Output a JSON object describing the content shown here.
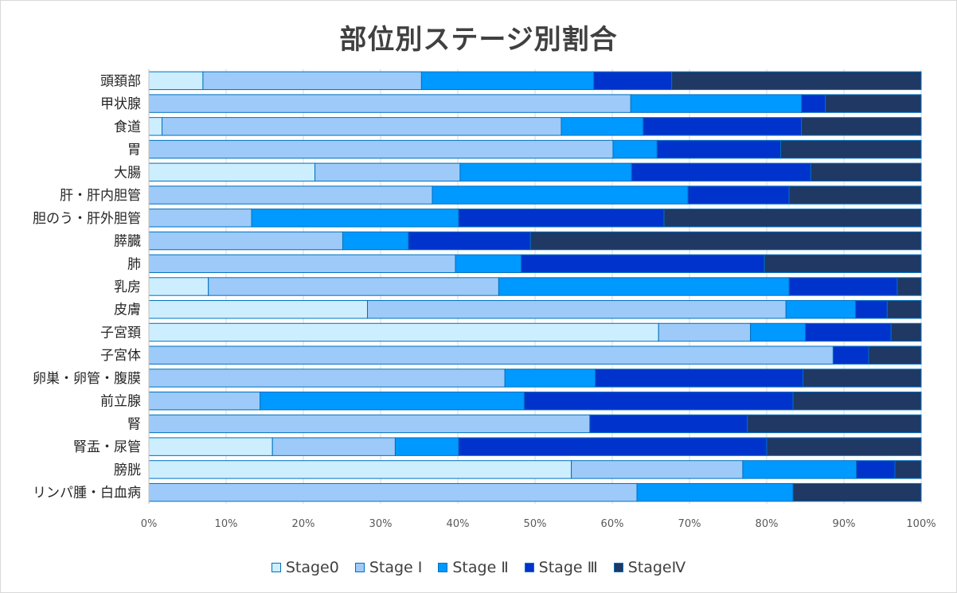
{
  "chart_data": {
    "type": "bar",
    "orientation": "horizontal",
    "stacked": "percent",
    "title": "部位別ステージ別割合",
    "categories": [
      "頭頚部",
      "甲状腺",
      "食道",
      "胃",
      "大腸",
      "肝・肝内胆管",
      "胆のう・肝外胆管",
      "膵臓",
      "肺",
      "乳房",
      "皮膚",
      "子宮頚",
      "子宮体",
      "卵巣・卵管・腹膜",
      "前立腺",
      "腎",
      "腎盂・尿管",
      "膀胱",
      "リンパ腫・白血病"
    ],
    "xlim": [
      0,
      100
    ],
    "x_ticks": [
      "0%",
      "10%",
      "20%",
      "30%",
      "40%",
      "50%",
      "60%",
      "70%",
      "80%",
      "90%",
      "100%"
    ],
    "grid": true,
    "legend_position": "bottom",
    "series": [
      {
        "name": "Stage0",
        "color": "#cdeeff",
        "values": [
          7,
          0,
          1.7,
          0,
          21.5,
          0,
          0,
          0,
          0,
          7.7,
          28.3,
          66,
          0,
          0,
          0,
          0,
          16,
          54.7,
          0
        ]
      },
      {
        "name": "Stage Ⅰ",
        "color": "#9dcaf8",
        "values": [
          28.3,
          62.4,
          51.7,
          60.1,
          18.8,
          36.7,
          13.3,
          25.1,
          39.7,
          37.6,
          54.2,
          11.9,
          88.6,
          46.1,
          14.4,
          57.1,
          15.9,
          22.2,
          63.2
        ]
      },
      {
        "name": "Stage Ⅱ",
        "color": "#0099ff",
        "values": [
          22.3,
          22.1,
          10.6,
          5.7,
          22.2,
          33.1,
          26.8,
          8.5,
          8.5,
          37.6,
          9,
          7.1,
          0,
          11.7,
          34.2,
          0,
          8.2,
          14.7,
          20.2
        ]
      },
      {
        "name": "Stage Ⅲ",
        "color": "#0033cc",
        "values": [
          10.1,
          3.1,
          20.5,
          16,
          23.2,
          13.1,
          26.6,
          15.8,
          31.5,
          14,
          4.1,
          11.1,
          4.6,
          26.9,
          34.8,
          20.4,
          39.9,
          5,
          0
        ]
      },
      {
        "name": "StageⅣ",
        "color": "#1f3864",
        "values": [
          32.3,
          12.4,
          15.5,
          18.2,
          14.3,
          17.1,
          33.3,
          50.6,
          20.3,
          3.1,
          4.4,
          3.9,
          6.8,
          15.3,
          16.6,
          22.5,
          20,
          3.4,
          16.6
        ]
      }
    ]
  }
}
